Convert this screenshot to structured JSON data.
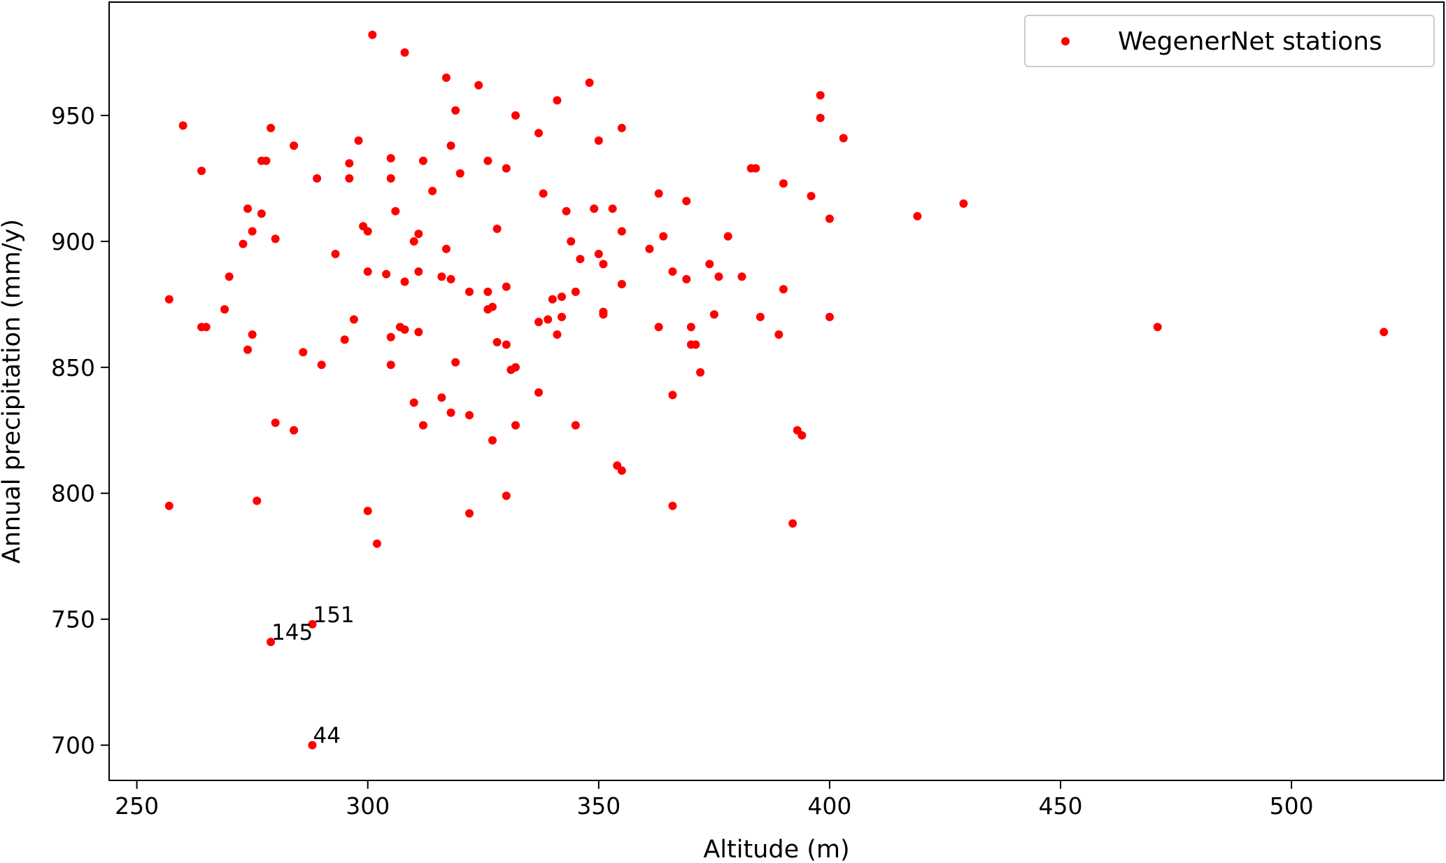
{
  "chart_data": {
    "type": "scatter",
    "xlabel": "Altitude (m)",
    "ylabel": "Annual precipitation (mm/y)",
    "xlim": [
      244,
      533
    ],
    "ylim": [
      686,
      995
    ],
    "xticks": [
      250,
      300,
      350,
      400,
      450,
      500
    ],
    "yticks": [
      700,
      750,
      800,
      850,
      900,
      950
    ],
    "grid": false,
    "legend_position": "top-right",
    "marker_color": "#ff0000",
    "series": [
      {
        "name": "WegenerNet stations",
        "points": [
          [
            301,
            982
          ],
          [
            308,
            975
          ],
          [
            317,
            965
          ],
          [
            324,
            962
          ],
          [
            348,
            963
          ],
          [
            341,
            956
          ],
          [
            398,
            958
          ],
          [
            398,
            949
          ],
          [
            403,
            941
          ],
          [
            260,
            946
          ],
          [
            279,
            945
          ],
          [
            319,
            952
          ],
          [
            332,
            950
          ],
          [
            355,
            945
          ],
          [
            350,
            940
          ],
          [
            337,
            943
          ],
          [
            298,
            940
          ],
          [
            284,
            938
          ],
          [
            318,
            938
          ],
          [
            264,
            928
          ],
          [
            277,
            932
          ],
          [
            278,
            932
          ],
          [
            305,
            933
          ],
          [
            312,
            932
          ],
          [
            326,
            932
          ],
          [
            296,
            931
          ],
          [
            320,
            927
          ],
          [
            330,
            929
          ],
          [
            383,
            929
          ],
          [
            384,
            929
          ],
          [
            289,
            925
          ],
          [
            296,
            925
          ],
          [
            305,
            925
          ],
          [
            314,
            920
          ],
          [
            338,
            919
          ],
          [
            363,
            919
          ],
          [
            390,
            923
          ],
          [
            396,
            918
          ],
          [
            369,
            916
          ],
          [
            353,
            913
          ],
          [
            349,
            913
          ],
          [
            343,
            912
          ],
          [
            306,
            912
          ],
          [
            274,
            913
          ],
          [
            277,
            911
          ],
          [
            400,
            909
          ],
          [
            419,
            910
          ],
          [
            429,
            915
          ],
          [
            299,
            906
          ],
          [
            300,
            904
          ],
          [
            275,
            904
          ],
          [
            273,
            899
          ],
          [
            280,
            901
          ],
          [
            311,
            903
          ],
          [
            310,
            900
          ],
          [
            328,
            905
          ],
          [
            355,
            904
          ],
          [
            344,
            900
          ],
          [
            364,
            902
          ],
          [
            378,
            902
          ],
          [
            361,
            897
          ],
          [
            317,
            897
          ],
          [
            293,
            895
          ],
          [
            350,
            895
          ],
          [
            346,
            893
          ],
          [
            351,
            891
          ],
          [
            374,
            891
          ],
          [
            270,
            886
          ],
          [
            300,
            888
          ],
          [
            304,
            887
          ],
          [
            311,
            888
          ],
          [
            316,
            886
          ],
          [
            318,
            885
          ],
          [
            366,
            888
          ],
          [
            369,
            885
          ],
          [
            376,
            886
          ],
          [
            381,
            886
          ],
          [
            308,
            884
          ],
          [
            355,
            883
          ],
          [
            330,
            882
          ],
          [
            322,
            880
          ],
          [
            326,
            880
          ],
          [
            345,
            880
          ],
          [
            390,
            881
          ],
          [
            342,
            878
          ],
          [
            340,
            877
          ],
          [
            257,
            877
          ],
          [
            327,
            874
          ],
          [
            326,
            873
          ],
          [
            269,
            873
          ],
          [
            351,
            872
          ],
          [
            351,
            871
          ],
          [
            342,
            870
          ],
          [
            375,
            871
          ],
          [
            385,
            870
          ],
          [
            400,
            870
          ],
          [
            297,
            869
          ],
          [
            339,
            869
          ],
          [
            337,
            868
          ],
          [
            307,
            866
          ],
          [
            308,
            865
          ],
          [
            311,
            864
          ],
          [
            264,
            866
          ],
          [
            265,
            866
          ],
          [
            275,
            863
          ],
          [
            341,
            863
          ],
          [
            363,
            866
          ],
          [
            370,
            866
          ],
          [
            389,
            863
          ],
          [
            471,
            866
          ],
          [
            520,
            864
          ],
          [
            295,
            861
          ],
          [
            305,
            862
          ],
          [
            328,
            860
          ],
          [
            330,
            859
          ],
          [
            370,
            859
          ],
          [
            371,
            859
          ],
          [
            274,
            857
          ],
          [
            286,
            856
          ],
          [
            290,
            851
          ],
          [
            305,
            851
          ],
          [
            319,
            852
          ],
          [
            331,
            849
          ],
          [
            332,
            850
          ],
          [
            372,
            848
          ],
          [
            337,
            840
          ],
          [
            366,
            839
          ],
          [
            310,
            836
          ],
          [
            316,
            838
          ],
          [
            318,
            832
          ],
          [
            322,
            831
          ],
          [
            280,
            828
          ],
          [
            284,
            825
          ],
          [
            312,
            827
          ],
          [
            332,
            827
          ],
          [
            345,
            827
          ],
          [
            393,
            825
          ],
          [
            394,
            823
          ],
          [
            327,
            821
          ],
          [
            354,
            811
          ],
          [
            355,
            809
          ],
          [
            257,
            795
          ],
          [
            276,
            797
          ],
          [
            300,
            793
          ],
          [
            322,
            792
          ],
          [
            330,
            799
          ],
          [
            366,
            795
          ],
          [
            392,
            788
          ],
          [
            302,
            780
          ],
          [
            288,
            748
          ],
          [
            279,
            741
          ],
          [
            288,
            700
          ]
        ]
      }
    ],
    "annotations": [
      {
        "text": "151",
        "x": 288,
        "y": 748
      },
      {
        "text": "145",
        "x": 279,
        "y": 741
      },
      {
        "text": "44",
        "x": 288,
        "y": 700
      }
    ]
  }
}
